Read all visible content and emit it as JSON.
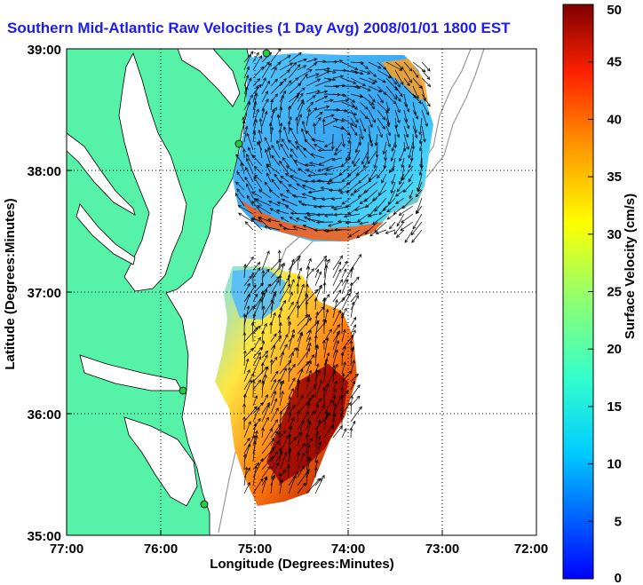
{
  "title": "Southern Mid-Atlantic Raw Velocities (1 Day Avg) 2008/01/01 1800 EST",
  "map": {
    "xlabel": "Longitude (Degrees:Minutes)",
    "ylabel": "Latitude (Degrees:Minutes)",
    "x_ticks": [
      "77:00",
      "76:00",
      "75:00",
      "74:00",
      "73:00",
      "72:00"
    ],
    "y_ticks": [
      "39:00",
      "38:00",
      "37:00",
      "36:00",
      "35:00"
    ],
    "grid": "dotted",
    "land_color": "#55f2a8"
  },
  "colorbar": {
    "label": "Surface Velocity (cm/s)",
    "ticks": [
      "50",
      "45",
      "40",
      "35",
      "30",
      "25",
      "20",
      "15",
      "10",
      "5",
      "0"
    ],
    "range": [
      0,
      50
    ],
    "colormap": "jet"
  },
  "stations": [
    {
      "name": "north-station-1"
    },
    {
      "name": "north-station-2"
    },
    {
      "name": "south-station-1"
    },
    {
      "name": "south-station-2"
    }
  ]
}
